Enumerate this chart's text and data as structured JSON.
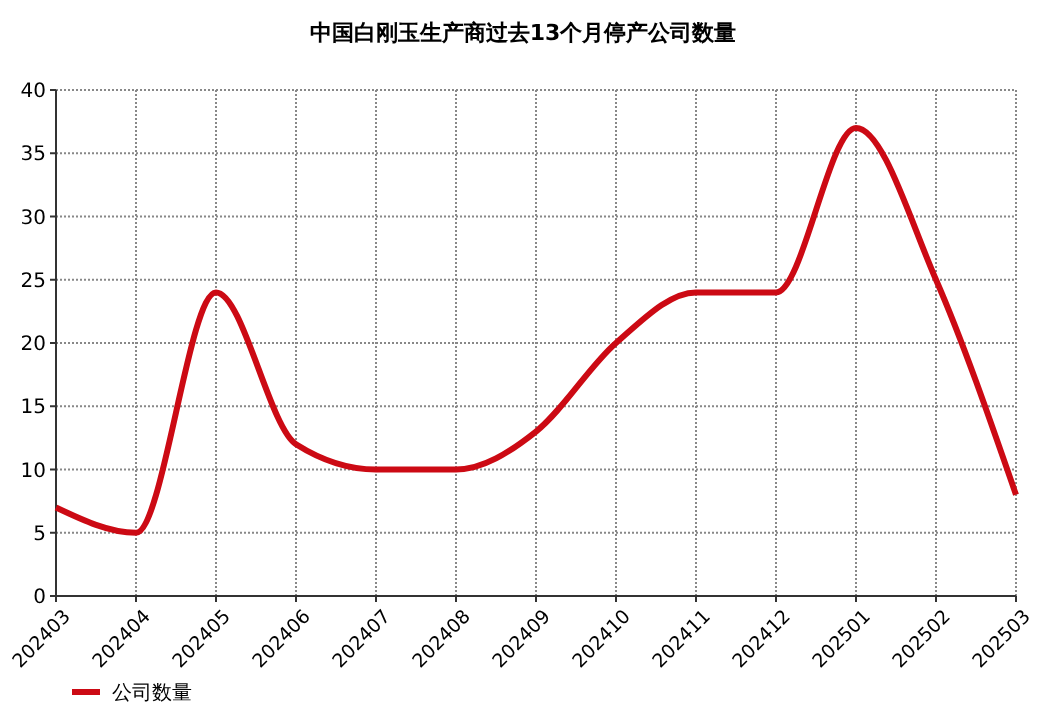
{
  "chart_data": {
    "type": "line",
    "title": "中国白刚玉生产商过去13个月停产公司数量",
    "categories": [
      "202403",
      "202404",
      "202405",
      "202406",
      "202407",
      "202408",
      "202409",
      "202410",
      "202411",
      "202412",
      "202501",
      "202502",
      "202503"
    ],
    "series": [
      {
        "name": "公司数量",
        "color": "#cc0a14",
        "values": [
          7,
          5,
          24,
          12,
          10,
          10,
          13,
          20,
          24,
          24,
          37,
          25,
          8
        ]
      }
    ],
    "ylim": [
      0,
      40
    ],
    "yticks": [
      0,
      5,
      10,
      15,
      20,
      25,
      30,
      35,
      40
    ],
    "grid": true,
    "legend": "bottom left",
    "marker": "none",
    "line_style": "solid"
  }
}
